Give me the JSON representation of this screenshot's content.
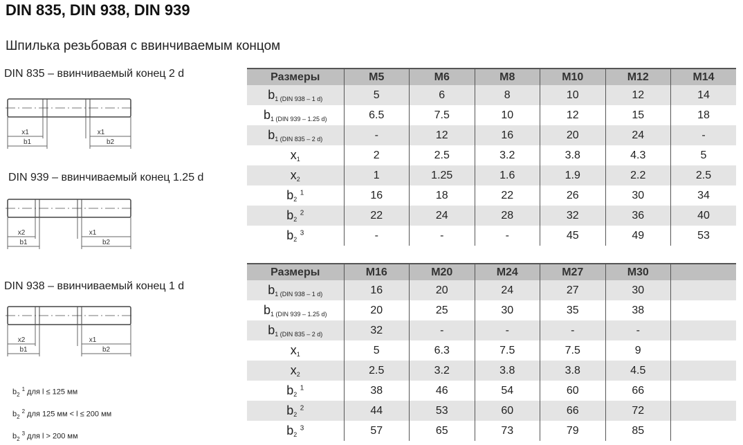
{
  "title": "DIN 835, DIN 938, DIN 939",
  "subtitle": "Шпилька резьбовая с ввинчиваемым концом",
  "diagrams": [
    {
      "label": "DIN 835 – ввинчиваемый конец 2 d",
      "dims": [
        "x1",
        "x1",
        "b1",
        "b2"
      ]
    },
    {
      "label": "DIN 939 – ввинчиваемый конец 1.25 d",
      "dims": [
        "x2",
        "x1",
        "b1",
        "b2"
      ]
    },
    {
      "label": "DIN 938 – ввинчиваемый конец 1 d",
      "dims": [
        "x2",
        "x1",
        "b1",
        "b2"
      ]
    }
  ],
  "notes": [
    {
      "sym": "b",
      "sub": "2",
      "sup": "1",
      "text": "для l ≤ 125 мм"
    },
    {
      "sym": "b",
      "sub": "2",
      "sup": "2",
      "text": "для 125 мм < l ≤ 200 мм"
    },
    {
      "sym": "b",
      "sub": "2",
      "sup": "3",
      "text": "для l > 200 мм"
    }
  ],
  "row_labels": [
    {
      "sym": "b",
      "sub": "1 (DIN 938 – 1 d)",
      "sup": ""
    },
    {
      "sym": "b",
      "sub": "1 (DIN 939 – 1.25 d)",
      "sup": ""
    },
    {
      "sym": "b",
      "sub": "1 (DIN 835 – 2 d)",
      "sup": ""
    },
    {
      "sym": "x",
      "sub": "1",
      "sup": ""
    },
    {
      "sym": "x",
      "sub": "2",
      "sup": ""
    },
    {
      "sym": "b",
      "sub": "2",
      "sup": "1"
    },
    {
      "sym": "b",
      "sub": "2",
      "sup": "2"
    },
    {
      "sym": "b",
      "sub": "2",
      "sup": "3"
    }
  ],
  "tables": [
    {
      "header": "Размеры",
      "columns": [
        "M5",
        "M6",
        "M8",
        "M10",
        "M12",
        "M14"
      ],
      "rows": [
        [
          "5",
          "6",
          "8",
          "10",
          "12",
          "14"
        ],
        [
          "6.5",
          "7.5",
          "10",
          "12",
          "15",
          "18"
        ],
        [
          "-",
          "12",
          "16",
          "20",
          "24",
          "-"
        ],
        [
          "2",
          "2.5",
          "3.2",
          "3.8",
          "4.3",
          "5"
        ],
        [
          "1",
          "1.25",
          "1.6",
          "1.9",
          "2.2",
          "2.5"
        ],
        [
          "16",
          "18",
          "22",
          "26",
          "30",
          "34"
        ],
        [
          "22",
          "24",
          "28",
          "32",
          "36",
          "40"
        ],
        [
          "-",
          "-",
          "-",
          "45",
          "49",
          "53"
        ]
      ]
    },
    {
      "header": "Размеры",
      "columns": [
        "M16",
        "M20",
        "M24",
        "M27",
        "M30",
        ""
      ],
      "rows": [
        [
          "16",
          "20",
          "24",
          "27",
          "30",
          ""
        ],
        [
          "20",
          "25",
          "30",
          "35",
          "38",
          ""
        ],
        [
          "32",
          "-",
          "-",
          "-",
          "-",
          ""
        ],
        [
          "5",
          "6.3",
          "7.5",
          "7.5",
          "9",
          ""
        ],
        [
          "2.5",
          "3.2",
          "3.8",
          "3.8",
          "4.5",
          ""
        ],
        [
          "38",
          "46",
          "54",
          "60",
          "66",
          ""
        ],
        [
          "44",
          "53",
          "60",
          "66",
          "72",
          ""
        ],
        [
          "57",
          "65",
          "73",
          "79",
          "85",
          ""
        ]
      ]
    }
  ]
}
